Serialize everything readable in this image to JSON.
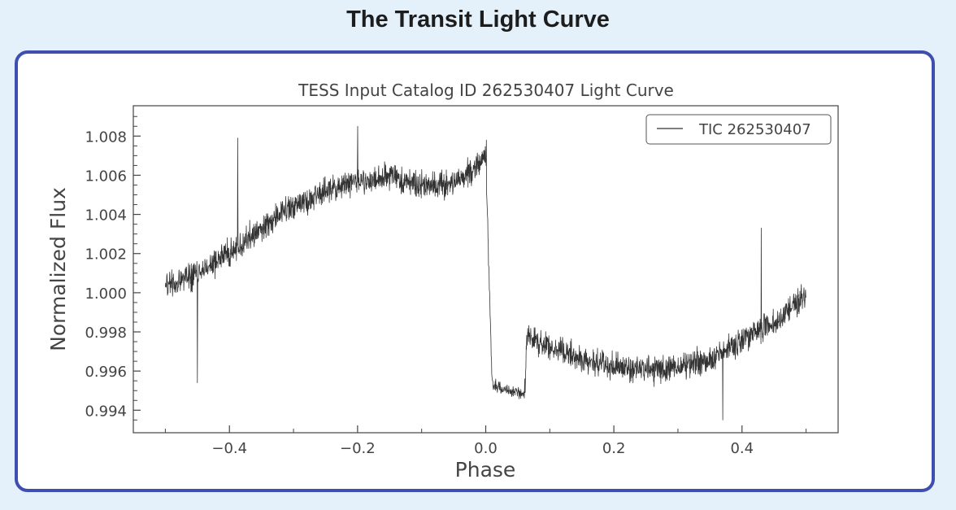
{
  "page": {
    "title": "The Transit Light Curve"
  },
  "chart_data": {
    "type": "line",
    "title": "TESS Input Catalog ID 262530407 Light Curve",
    "xlabel": "Phase",
    "ylabel": "Normalized Flux",
    "xlim": [
      -0.55,
      0.55
    ],
    "ylim": [
      0.99285,
      1.00955
    ],
    "xticks": [
      -0.4,
      -0.2,
      0.0,
      0.2,
      0.4
    ],
    "xtick_labels": [
      "−0.4",
      "−0.2",
      "0.0",
      "0.2",
      "0.4"
    ],
    "yticks": [
      0.994,
      0.996,
      0.998,
      1.0,
      1.002,
      1.004,
      1.006,
      1.008
    ],
    "ytick_labels": [
      "0.994",
      "0.996",
      "0.998",
      "1.000",
      "1.002",
      "1.004",
      "1.006",
      "1.008"
    ],
    "legend": {
      "position": "top-right",
      "entries": [
        "TIC 262530407"
      ]
    },
    "grid": false,
    "series": [
      {
        "name": "TIC 262530407",
        "color": "#333333",
        "trend": {
          "x": [
            -0.5,
            -0.45,
            -0.4,
            -0.35,
            -0.3,
            -0.25,
            -0.2,
            -0.15,
            -0.1,
            -0.05,
            -0.01,
            0.0,
            0.01,
            0.03,
            0.06,
            0.065,
            0.1,
            0.15,
            0.2,
            0.25,
            0.3,
            0.35,
            0.4,
            0.45,
            0.5
          ],
          "y": [
            1.0003,
            1.0009,
            1.0021,
            1.0033,
            1.0045,
            1.0052,
            1.0057,
            1.0059,
            1.0055,
            1.0055,
            1.0065,
            1.0069,
            0.9953,
            0.9951,
            0.9948,
            0.9978,
            0.9972,
            0.9966,
            0.9962,
            0.9961,
            0.9962,
            0.9966,
            0.9976,
            0.9985,
            0.9998
          ]
        },
        "noise_amplitude": 0.0007,
        "spikes": [
          {
            "x": -0.45,
            "y": 0.9954
          },
          {
            "x": -0.387,
            "y": 1.0079
          },
          {
            "x": -0.2,
            "y": 1.0085
          },
          {
            "x": 0.001,
            "y": 1.0078
          },
          {
            "x": 0.37,
            "y": 0.9935
          },
          {
            "x": 0.43,
            "y": 1.0033
          }
        ]
      }
    ]
  }
}
